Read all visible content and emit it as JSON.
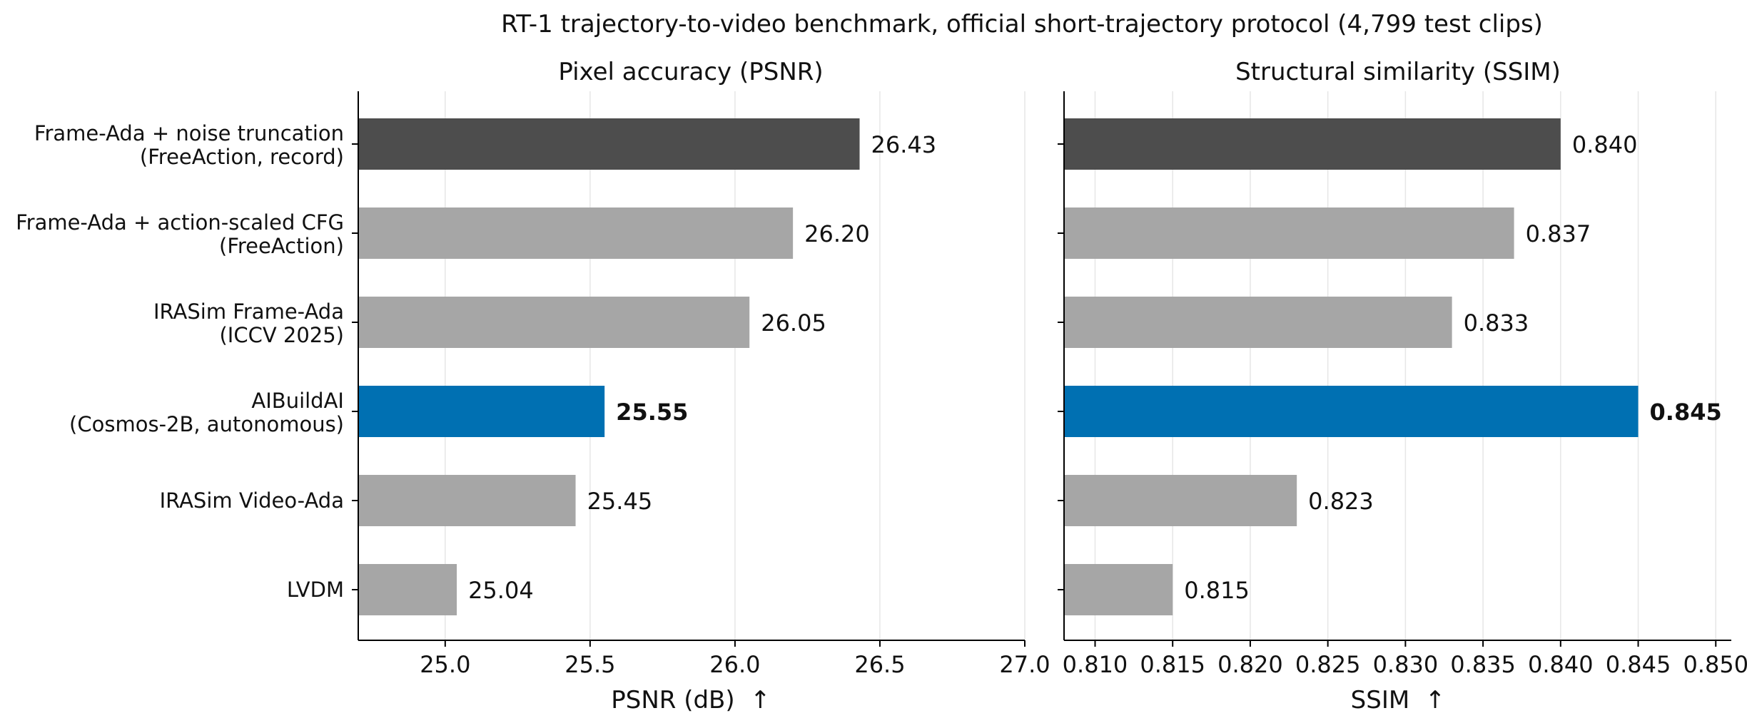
{
  "figure_title": "RT-1 trajectory-to-video benchmark, official short-trajectory protocol (4,799 test clips)",
  "colors": {
    "highlight": "#0070b2",
    "record": "#4d4d4d",
    "other": "#a6a6a6",
    "axis": "#000000",
    "grid": "#e6e6e6"
  },
  "chart_data": [
    {
      "type": "bar",
      "orientation": "horizontal",
      "title": "Pixel accuracy (PSNR)",
      "xlabel": "PSNR (dB)  ↑",
      "ylabel": "",
      "xlim": [
        24.7,
        27.0
      ],
      "xticks": [
        25.0,
        25.5,
        26.0,
        26.5,
        27.0
      ],
      "tick_labels": [
        "25.0",
        "25.5",
        "26.0",
        "26.5",
        "27.0"
      ],
      "grid": "vertical",
      "categories": [
        [
          "Frame-Ada + noise truncation",
          "(FreeAction, record)"
        ],
        [
          "Frame-Ada + action-scaled CFG",
          "(FreeAction)"
        ],
        [
          "IRASim Frame-Ada",
          "(ICCV 2025)"
        ],
        [
          "AIBuildAI",
          "(Cosmos-2B, autonomous)"
        ],
        [
          "IRASim Video-Ada"
        ],
        [
          "LVDM"
        ]
      ],
      "values": [
        26.43,
        26.2,
        26.05,
        25.55,
        25.45,
        25.04
      ],
      "value_labels": [
        "26.43",
        "26.20",
        "26.05",
        "25.55",
        "25.45",
        "25.04"
      ],
      "bar_roles": [
        "record",
        "other",
        "other",
        "highlight",
        "other",
        "other"
      ],
      "bold_labels": [
        false,
        false,
        false,
        true,
        false,
        false
      ]
    },
    {
      "type": "bar",
      "orientation": "horizontal",
      "title": "Structural similarity (SSIM)",
      "xlabel": "SSIM  ↑",
      "ylabel": "",
      "xlim": [
        0.808,
        0.851
      ],
      "xticks": [
        0.81,
        0.815,
        0.82,
        0.825,
        0.83,
        0.835,
        0.84,
        0.845,
        0.85
      ],
      "tick_labels": [
        "0.810",
        "0.815",
        "0.820",
        "0.825",
        "0.830",
        "0.835",
        "0.840",
        "0.845",
        "0.850"
      ],
      "grid": "vertical",
      "categories_shared": true,
      "values": [
        0.84,
        0.837,
        0.833,
        0.845,
        0.823,
        0.815
      ],
      "value_labels": [
        "0.840",
        "0.837",
        "0.833",
        "0.845",
        "0.823",
        "0.815"
      ],
      "bar_roles": [
        "record",
        "other",
        "other",
        "highlight",
        "other",
        "other"
      ],
      "bold_labels": [
        false,
        false,
        false,
        true,
        false,
        false
      ]
    }
  ]
}
